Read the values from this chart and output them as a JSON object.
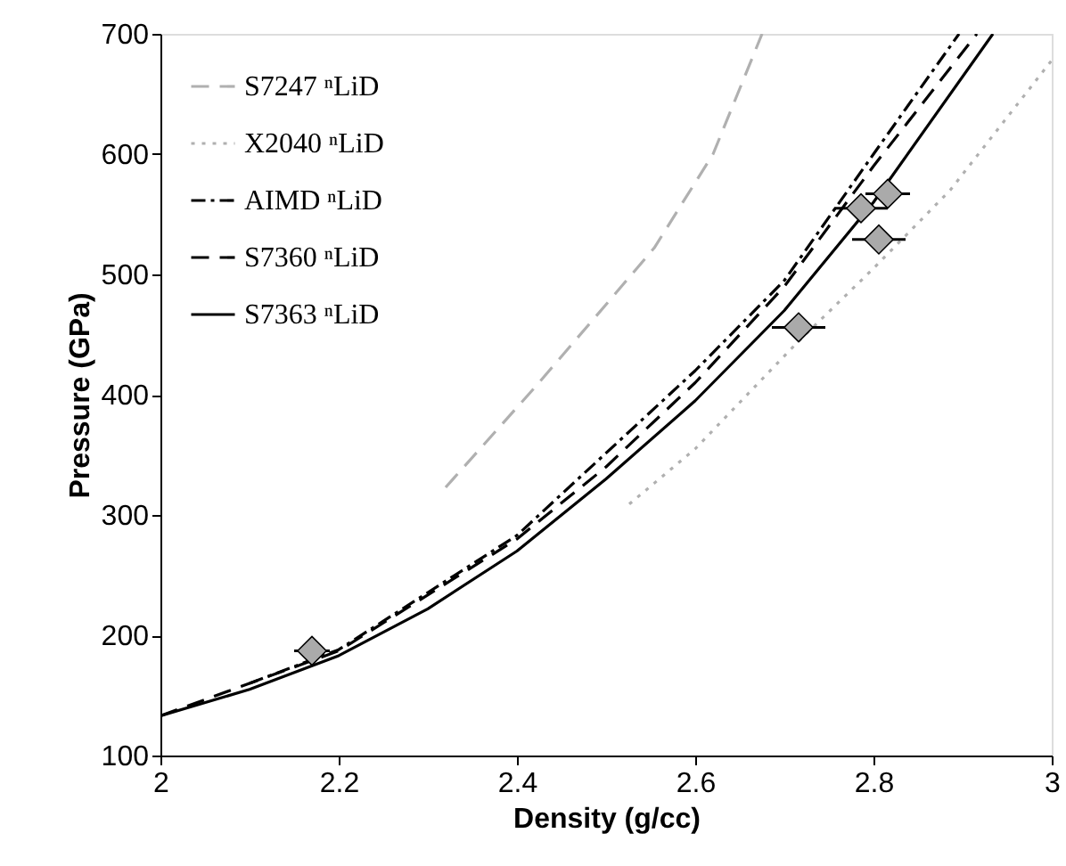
{
  "chart_data": {
    "type": "line",
    "xlabel": "Density (g/cc)",
    "ylabel": "Pressure (GPa)",
    "xlim": [
      2,
      3
    ],
    "ylim": [
      100,
      700
    ],
    "xticks": [
      2,
      2.2,
      2.4,
      2.6,
      2.8,
      3
    ],
    "yticks": [
      100,
      200,
      300,
      400,
      500,
      600,
      700
    ],
    "grid": false,
    "legend": "top left",
    "series": [
      {
        "name": "S7247 ⁿLiD",
        "color": "#b0b0b0",
        "line_style": "dashed",
        "x": [
          2.32,
          2.42,
          2.5,
          2.554,
          2.62,
          2.675
        ],
        "values": [
          323,
          406,
          475,
          522,
          600,
          700
        ]
      },
      {
        "name": "X2040 ⁿLiD",
        "color": "#b0b0b0",
        "line_style": "dotted",
        "x": [
          2.526,
          2.6,
          2.714,
          2.8,
          2.886,
          3.0
        ],
        "values": [
          309,
          355,
          443,
          505,
          570,
          678
        ]
      },
      {
        "name": "AIMD ⁿLiD",
        "color": "#000000",
        "line_style": "dashdot",
        "x": [
          2.1,
          2.2,
          2.4,
          2.6,
          2.7,
          2.8,
          2.896
        ],
        "values": [
          160,
          188,
          283,
          420,
          495,
          600,
          700
        ]
      },
      {
        "name": "S7360 ⁿLiD",
        "color": "#000000",
        "line_style": "dashed",
        "x": [
          2.0,
          2.2,
          2.4,
          2.5,
          2.6,
          2.7,
          2.8,
          2.916
        ],
        "values": [
          133,
          187,
          280,
          340,
          410,
          490,
          590,
          700
        ]
      },
      {
        "name": "S7363 ⁿLiD",
        "color": "#000000",
        "line_style": "solid",
        "x": [
          2.0,
          2.1,
          2.2,
          2.3,
          2.4,
          2.5,
          2.6,
          2.7,
          2.8,
          2.934
        ],
        "values": [
          133,
          155,
          183,
          222,
          270,
          330,
          395,
          470,
          560,
          700
        ]
      },
      {
        "type": "scatter",
        "color": "#aaaaaa",
        "marker": "diamond",
        "x": [
          2.17,
          2.716,
          2.786,
          2.806,
          2.816
        ],
        "values": [
          187,
          456,
          555,
          529,
          567
        ],
        "xerrors": [
          0.02,
          0.03,
          0.03,
          0.03,
          0.025
        ]
      }
    ]
  }
}
